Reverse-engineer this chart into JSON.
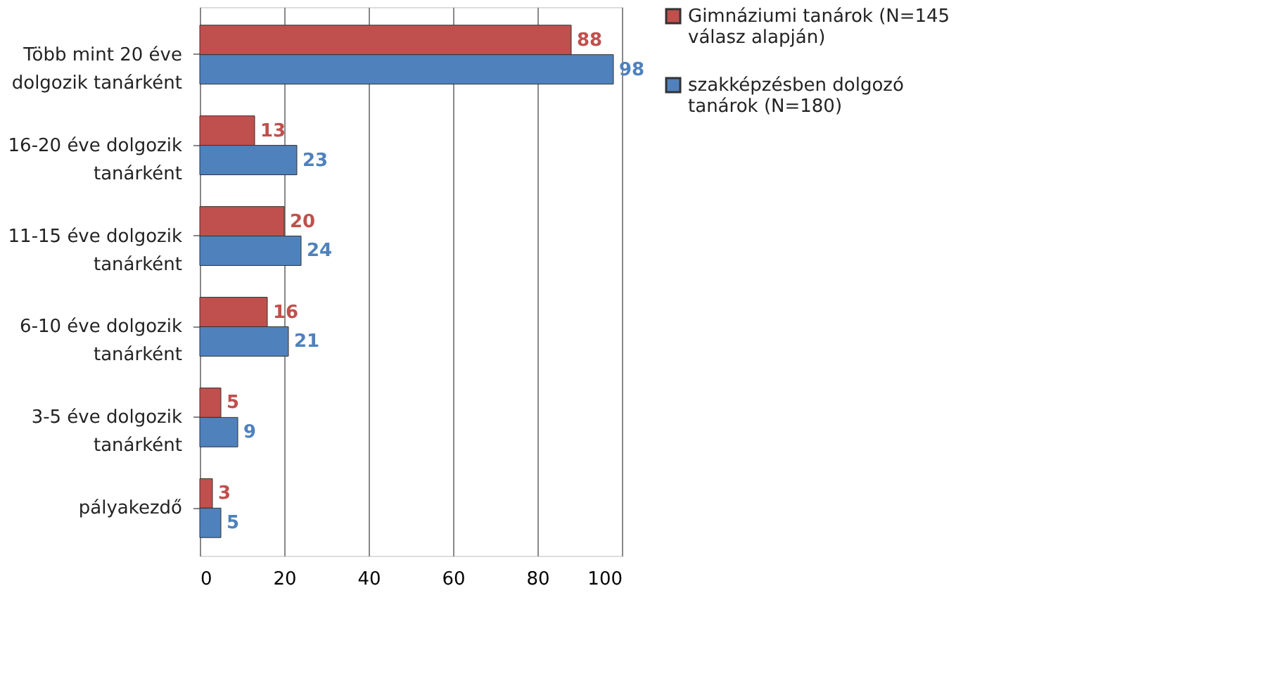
{
  "chart_data": {
    "type": "bar",
    "orientation": "horizontal",
    "categories": [
      "Több mint 20 éve dolgozik tanárként",
      "16-20 éve dolgozik tanárként",
      "11-15 éve dolgozik tanárként",
      "6-10 éve dolgozik tanárként",
      "3-5 éve dolgozik tanárként",
      "pályakezdő"
    ],
    "series": [
      {
        "name": "Gimnáziumi  tanárok (N=145 válasz alapján)",
        "color": "#c0504d",
        "values": [
          88,
          13,
          20,
          16,
          5,
          3
        ]
      },
      {
        "name": "szakképzésben dolgozó tanárok (N=180)",
        "color": "#4f81bd",
        "values": [
          98,
          23,
          24,
          21,
          9,
          5
        ]
      }
    ],
    "xlim": [
      0,
      100
    ],
    "xticks": [
      0,
      20,
      40,
      60,
      80,
      100
    ],
    "grid": "x",
    "legend": "right",
    "data_labels": true
  }
}
